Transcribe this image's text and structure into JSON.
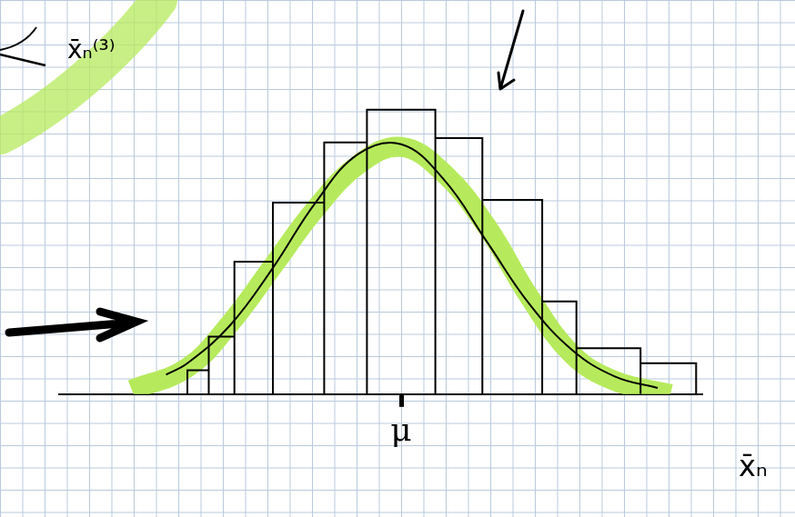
{
  "chart_data": {
    "type": "histogram",
    "x_label": "x̄ₙ",
    "bins": [
      -5,
      -4.5,
      -3.9,
      -3,
      -1.8,
      -0.8,
      0.8,
      1.9,
      3.3,
      4.1,
      5.6,
      6.9
    ],
    "counts": [
      2.7,
      6.5,
      15,
      21.7,
      28.5,
      32.2,
      29,
      22,
      10.5,
      5.2,
      3.5
    ],
    "color": "#000000",
    "xlim": [
      -8,
      7
    ],
    "xticks": [
      {
        "value": 0,
        "label": "μ"
      }
    ],
    "ylim": [
      0,
      40
    ],
    "tick_labels": "x",
    "grid": true,
    "series": [
      {
        "type": "line",
        "color": "#b6ea5c",
        "x": [
          -6.3,
          -5,
          -4,
          -3,
          -2,
          -1,
          0,
          1,
          2,
          3,
          4,
          5,
          6.3
        ],
        "values": [
          0.5,
          3,
          8,
          14.5,
          21,
          26,
          28,
          25,
          19,
          11,
          4.5,
          1.5,
          0
        ]
      },
      {
        "type": "line",
        "color": "#000000",
        "x": [
          -5.5,
          -5,
          -4,
          -3,
          -2,
          -1,
          0,
          1,
          2,
          3,
          4,
          5,
          6
        ],
        "values": [
          2.2,
          3.5,
          7.8,
          14.3,
          21.7,
          27.2,
          28.3,
          24.3,
          17.3,
          10.2,
          5,
          2,
          0.7
        ]
      }
    ],
    "annotations": [
      {
        "text": "x̄ₙ⁽³⁾"
      }
    ]
  }
}
